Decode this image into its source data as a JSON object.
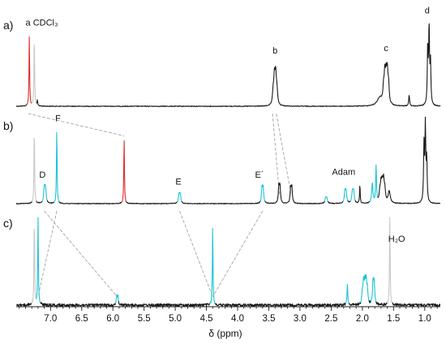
{
  "chart_data": {
    "type": "line",
    "xlabel": "δ (ppm)",
    "xlim": [
      7.55,
      0.75
    ],
    "x_reversed": true,
    "x_ticks": [
      7.0,
      6.5,
      6.0,
      5.5,
      5.0,
      4.5,
      4.0,
      3.5,
      3.0,
      2.5,
      2.0,
      1.5,
      1.0
    ],
    "x_tick_labels": [
      "7.0",
      "6.5",
      "6.0",
      "5.5",
      "5.0",
      "4.5",
      "4.0",
      "3.5",
      "3.0",
      "2.5",
      "2.0",
      "1.5",
      "1.0"
    ],
    "grid": false,
    "colors": {
      "base": "#1a1a1a",
      "aromatic": "#e02a2a",
      "cyclodextrin": "#1cc4d6",
      "solvent": "#c8c8c8",
      "connector": "#9a9a9a"
    },
    "panels": [
      {
        "label": "a)",
        "peaks": [
          {
            "ppm": 7.34,
            "height": 0.8,
            "width": 0.006,
            "color": "aromatic",
            "multiplet": "s"
          },
          {
            "ppm": 7.26,
            "height": 0.8,
            "width": 0.006,
            "color": "solvent",
            "multiplet": "s"
          },
          {
            "ppm": 7.21,
            "height": 0.06,
            "width": 0.006,
            "color": "base",
            "multiplet": "s"
          },
          {
            "ppm": 3.4,
            "height": 0.46,
            "width": 0.012,
            "color": "base",
            "multiplet": "q"
          },
          {
            "ppm": 1.62,
            "height": 0.49,
            "width": 0.012,
            "color": "base",
            "multiplet": "m"
          },
          {
            "ppm": 1.72,
            "height": 0.09,
            "width": 0.05,
            "color": "base",
            "multiplet": "s"
          },
          {
            "ppm": 1.25,
            "height": 0.13,
            "width": 0.008,
            "color": "base",
            "multiplet": "s"
          },
          {
            "ppm": 0.93,
            "height": 1.0,
            "width": 0.008,
            "color": "base",
            "multiplet": "t"
          }
        ],
        "annotations": [
          {
            "text": "a",
            "ppm": 7.36,
            "level": 0.92
          },
          {
            "text": "CDCl₃",
            "ppm": 7.08,
            "level": 0.92
          },
          {
            "text": "b",
            "ppm": 3.4,
            "level": 0.6
          },
          {
            "text": "c",
            "ppm": 1.62,
            "level": 0.63
          },
          {
            "text": "d",
            "ppm": 0.96,
            "level": 1.06
          }
        ]
      },
      {
        "label": "b)",
        "peaks": [
          {
            "ppm": 7.26,
            "height": 0.86,
            "width": 0.006,
            "color": "solvent",
            "multiplet": "s"
          },
          {
            "ppm": 7.09,
            "height": 0.22,
            "width": 0.012,
            "color": "cyclodextrin",
            "multiplet": "d"
          },
          {
            "ppm": 6.9,
            "height": 0.86,
            "width": 0.006,
            "color": "cyclodextrin",
            "multiplet": "s"
          },
          {
            "ppm": 5.82,
            "height": 0.76,
            "width": 0.006,
            "color": "aromatic",
            "multiplet": "s"
          },
          {
            "ppm": 4.93,
            "height": 0.13,
            "width": 0.012,
            "color": "cyclodextrin",
            "multiplet": "d"
          },
          {
            "ppm": 3.6,
            "height": 0.22,
            "width": 0.01,
            "color": "cyclodextrin",
            "multiplet": "d"
          },
          {
            "ppm": 3.33,
            "height": 0.24,
            "width": 0.01,
            "color": "base",
            "multiplet": "d"
          },
          {
            "ppm": 3.14,
            "height": 0.22,
            "width": 0.01,
            "color": "base",
            "multiplet": "d"
          },
          {
            "ppm": 2.58,
            "height": 0.08,
            "width": 0.012,
            "color": "cyclodextrin",
            "multiplet": "d"
          },
          {
            "ppm": 2.27,
            "height": 0.17,
            "width": 0.012,
            "color": "cyclodextrin",
            "multiplet": "d"
          },
          {
            "ppm": 2.15,
            "height": 0.17,
            "width": 0.012,
            "color": "cyclodextrin",
            "multiplet": "d"
          },
          {
            "ppm": 2.04,
            "height": 0.22,
            "width": 0.006,
            "color": "base",
            "multiplet": "s"
          },
          {
            "ppm": 1.84,
            "height": 0.23,
            "width": 0.012,
            "color": "cyclodextrin",
            "multiplet": "s"
          },
          {
            "ppm": 1.78,
            "height": 0.42,
            "width": 0.008,
            "color": "cyclodextrin",
            "multiplet": "s"
          },
          {
            "ppm": 1.68,
            "height": 0.33,
            "width": 0.012,
            "color": "base",
            "multiplet": "m"
          },
          {
            "ppm": 1.57,
            "height": 0.14,
            "width": 0.02,
            "color": "base",
            "multiplet": "s"
          },
          {
            "ppm": 0.99,
            "height": 1.0,
            "width": 0.008,
            "color": "base",
            "multiplet": "t"
          }
        ],
        "annotations": [
          {
            "text": "F",
            "ppm": 6.88,
            "level": 0.95
          },
          {
            "text": "D",
            "ppm": 7.13,
            "level": 0.3
          },
          {
            "text": "E",
            "ppm": 4.95,
            "level": 0.22
          },
          {
            "text": "E´",
            "ppm": 3.65,
            "level": 0.3
          },
          {
            "text": "Adam",
            "ppm": 2.3,
            "level": 0.33
          }
        ]
      },
      {
        "label": "c)",
        "peaks": [
          {
            "ppm": 7.26,
            "height": 1.0,
            "width": 0.006,
            "color": "solvent",
            "multiplet": "s"
          },
          {
            "ppm": 7.2,
            "height": 1.0,
            "width": 0.006,
            "color": "cyclodextrin",
            "multiplet": "s"
          },
          {
            "ppm": 5.93,
            "height": 0.12,
            "width": 0.008,
            "color": "cyclodextrin",
            "multiplet": "d"
          },
          {
            "ppm": 4.4,
            "height": 0.9,
            "width": 0.006,
            "color": "cyclodextrin",
            "multiplet": "s"
          },
          {
            "ppm": 2.24,
            "height": 0.23,
            "width": 0.008,
            "color": "cyclodextrin",
            "multiplet": "s"
          },
          {
            "ppm": 1.96,
            "height": 0.36,
            "width": 0.01,
            "color": "cyclodextrin",
            "multiplet": "m"
          },
          {
            "ppm": 1.82,
            "height": 0.3,
            "width": 0.01,
            "color": "cyclodextrin",
            "multiplet": "d"
          },
          {
            "ppm": 1.56,
            "height": 1.0,
            "width": 0.006,
            "color": "solvent",
            "multiplet": "s"
          }
        ],
        "annotations": [
          {
            "text": "H₂O",
            "ppm": 1.45,
            "level": 0.72
          }
        ]
      }
    ],
    "correlation_lines": [
      {
        "from_panel": 0,
        "from_ppm": 7.36,
        "to_panel": 1,
        "to_ppm": 5.82
      },
      {
        "from_panel": 0,
        "from_ppm": 3.44,
        "to_panel": 1,
        "to_ppm": 3.33
      },
      {
        "from_panel": 0,
        "from_ppm": 3.38,
        "to_panel": 1,
        "to_ppm": 3.14
      },
      {
        "from_panel": 1,
        "from_ppm": 7.1,
        "to_panel": 2,
        "to_ppm": 5.93
      },
      {
        "from_panel": 1,
        "from_ppm": 6.9,
        "to_panel": 2,
        "to_ppm": 7.2
      },
      {
        "from_panel": 1,
        "from_ppm": 4.93,
        "to_panel": 2,
        "to_ppm": 4.4
      },
      {
        "from_panel": 1,
        "from_ppm": 3.6,
        "to_panel": 2,
        "to_ppm": 4.4
      }
    ]
  }
}
